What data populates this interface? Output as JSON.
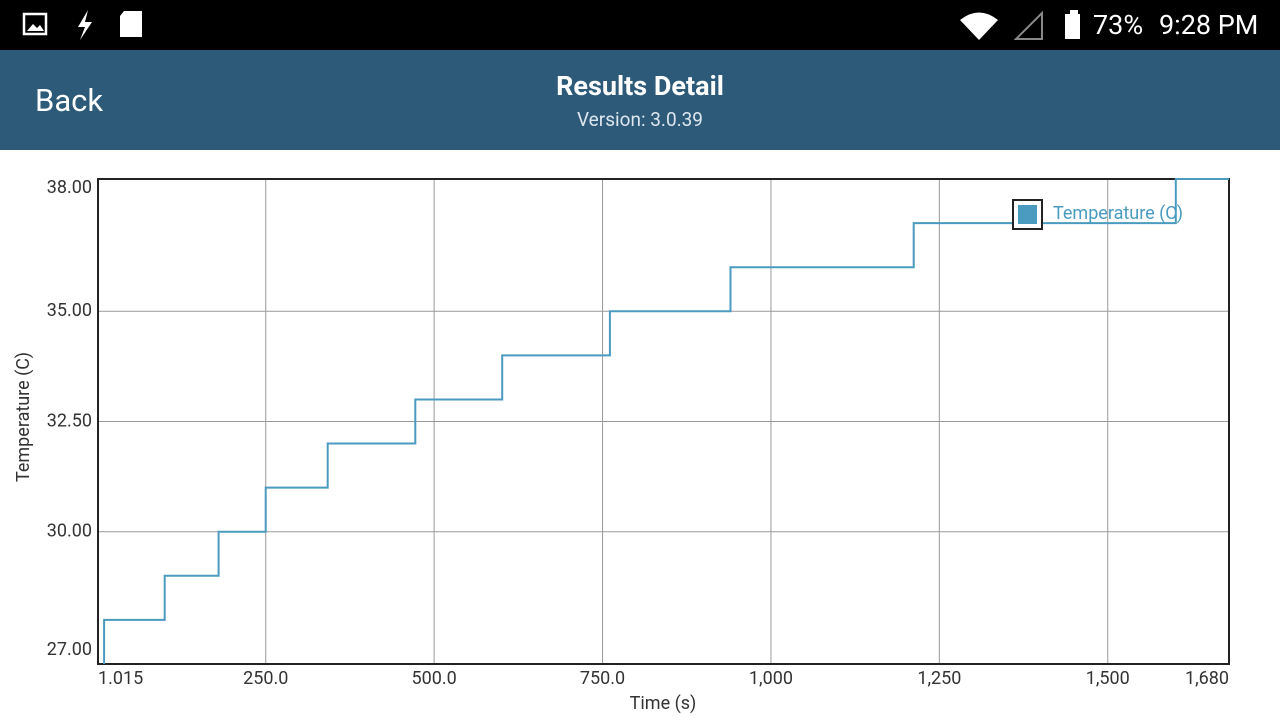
{
  "status_bar": {
    "battery": "73%",
    "time": "9:28 PM"
  },
  "header": {
    "back": "Back",
    "title": "Results Detail",
    "version": "Version: 3.0.39"
  },
  "chart_data": {
    "type": "line",
    "x_label": "Time (s)",
    "y_label": "Temperature (C)",
    "xlim": [
      1.015,
      1680
    ],
    "ylim": [
      27,
      38
    ],
    "xticks": [
      1.015,
      {
        "value": 250,
        "label": "250.0"
      },
      {
        "value": 500,
        "label": "500.0"
      },
      {
        "value": 750,
        "label": "750.0"
      },
      {
        "value": 1000,
        "label": "1,000"
      },
      {
        "value": 1250,
        "label": "1,250"
      },
      {
        "value": 1500,
        "label": "1,500"
      },
      {
        "value": 1680,
        "label": "1,680"
      }
    ],
    "yticks": [
      {
        "value": 27,
        "label": "27.00"
      },
      {
        "value": 30,
        "label": "30.00"
      },
      {
        "value": 32.5,
        "label": "32.50"
      },
      {
        "value": 35,
        "label": "35.00"
      },
      {
        "value": 38,
        "label": "38.00"
      }
    ],
    "grid": true,
    "legend": "upper-right",
    "series": [
      {
        "name": "Temperature (C)",
        "color": "#4a9bbf",
        "x": [
          10,
          10,
          100,
          100,
          180,
          180,
          250,
          250,
          342,
          342,
          472,
          472,
          601,
          601,
          761,
          761,
          940,
          940,
          1212,
          1212,
          1601,
          1601,
          1680
        ],
        "values": [
          27,
          28,
          28,
          29,
          29,
          30,
          30,
          31,
          31,
          32,
          32,
          33,
          33,
          34,
          34,
          35,
          35,
          36,
          36,
          37,
          37,
          38,
          38
        ]
      }
    ]
  }
}
